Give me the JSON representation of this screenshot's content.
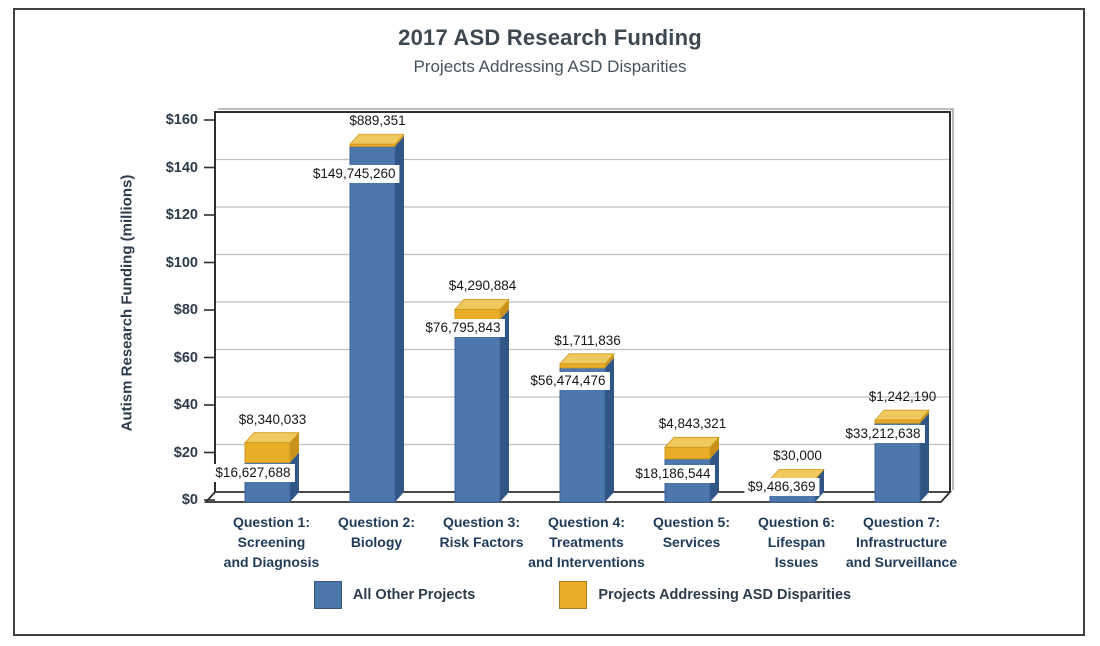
{
  "frame": {
    "border_color": "#3f3f3f",
    "background": "#ffffff"
  },
  "header": {
    "title": "2017 ASD Research Funding",
    "subtitle": "Projects Addressing ASD Disparities"
  },
  "chart_data": {
    "type": "bar",
    "stacked": true,
    "grid": true,
    "legend_position": "bottom",
    "title": "2017 ASD Research Funding",
    "subtitle": "Projects Addressing ASD Disparities",
    "y_axis": {
      "label": "Autism Research Funding (millions)",
      "range": [
        0,
        160
      ],
      "tick_step": 20,
      "tick_labels": [
        "$0",
        "$20",
        "$40",
        "$60",
        "$80",
        "$100",
        "$120",
        "$140",
        "$160"
      ]
    },
    "categories": [
      {
        "name": "Question 1: Screening and Diagnosis",
        "lines": [
          "Question 1:",
          "Screening",
          "and Diagnosis"
        ]
      },
      {
        "name": "Question 2: Biology",
        "lines": [
          "Question 2:",
          "Biology"
        ]
      },
      {
        "name": "Question 3: Risk Factors",
        "lines": [
          "Question 3:",
          "Risk Factors"
        ]
      },
      {
        "name": "Question 4: Treatments and Interventions",
        "lines": [
          "Question 4:",
          "Treatments",
          "and Interventions"
        ]
      },
      {
        "name": "Question 5: Services",
        "lines": [
          "Question 5:",
          "Services"
        ]
      },
      {
        "name": "Question 6: Lifespan Issues",
        "lines": [
          "Question 6:",
          "Lifespan",
          "Issues"
        ]
      },
      {
        "name": "Question 7: Infrastructure and Surveillance",
        "lines": [
          "Question 7:",
          "Infrastructure",
          "and Surveillance"
        ]
      }
    ],
    "series": [
      {
        "name": "All Other Projects",
        "color": "#4d78ad",
        "values_usd": [
          16627688,
          149745260,
          76795843,
          56474476,
          18186544,
          9486369,
          33212638
        ],
        "value_labels": [
          "$16,627,688",
          "$149,745,260",
          "$76,795,843",
          "$56,474,476",
          "$18,186,544",
          "$9,486,369",
          "$33,212,638"
        ]
      },
      {
        "name": "Projects Addressing ASD Disparities",
        "color": "#e9ad27",
        "values_usd": [
          8340033,
          889351,
          4290884,
          1711836,
          4843321,
          30000,
          1242190
        ],
        "value_labels": [
          "$8,340,033",
          "$889,351",
          "$4,290,884",
          "$1,711,836",
          "$4,843,321",
          "$30,000",
          "$1,242,190"
        ]
      }
    ]
  },
  "legend": {
    "items": [
      {
        "label": "All Other Projects",
        "color": "#4d78ad"
      },
      {
        "label": "Projects Addressing ASD Disparities",
        "color": "#e9ad27"
      }
    ]
  },
  "colors": {
    "blue": "#4d78ad",
    "blue_side": "#2f5685",
    "blue_edge": "#3a6097",
    "yellow": "#e9ad27",
    "yellow_side": "#c9921c",
    "yellow_top": "#f0c95e",
    "yellow_edge": "#d09a1f",
    "grid": "#bfbfbf",
    "wall_border": "#2e2e2e",
    "wall_shadow": "#a8a8a8",
    "title_text": "#3e4852",
    "subtitle_text": "#46525e",
    "axis_text": "#2d3c4c",
    "category_text": "#1f3b58",
    "value_text": "#161616"
  }
}
